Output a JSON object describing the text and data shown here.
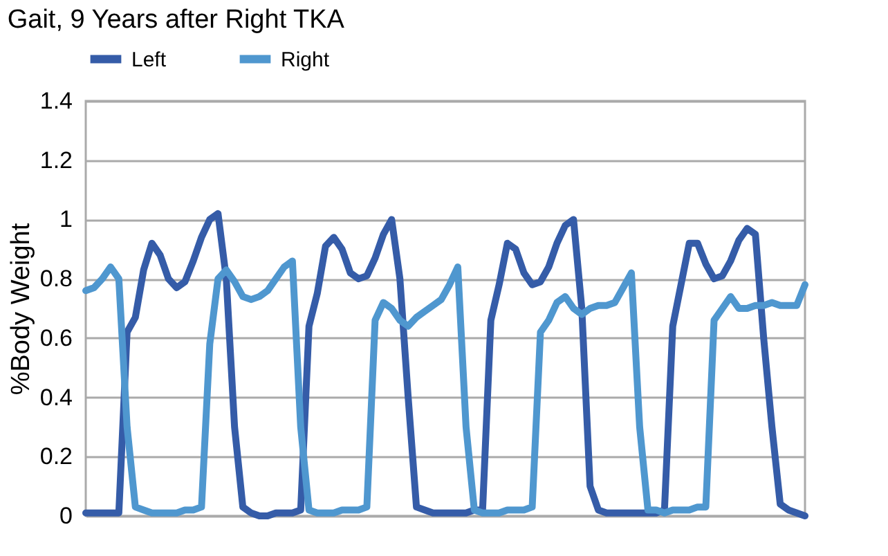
{
  "chart_data": {
    "type": "line",
    "title": "Gait, 9 Years after Right TKA",
    "ylabel": "%Body Weight",
    "ylim": [
      0,
      1.4
    ],
    "yticks": [
      0,
      0.2,
      0.4,
      0.6,
      0.8,
      1,
      1.2,
      1.4
    ],
    "grid": "y",
    "legend": "top",
    "line_style": "solid",
    "marker": "none",
    "categories": [
      null,
      null,
      null,
      null,
      null,
      null,
      null,
      null,
      null,
      null,
      null,
      null,
      null,
      null,
      null,
      null,
      null,
      null,
      null,
      null,
      null,
      null,
      null,
      null,
      null,
      null,
      null,
      null,
      null,
      null,
      null,
      null,
      null,
      null,
      null,
      null,
      null,
      null,
      null,
      null,
      null,
      null,
      null,
      null,
      null,
      null,
      null,
      null,
      null,
      null,
      null,
      null,
      null,
      null,
      null,
      null,
      null,
      null,
      null,
      null,
      null,
      null,
      null,
      null,
      null,
      null,
      null,
      null,
      null,
      null,
      null,
      null,
      null,
      null,
      null,
      null,
      null,
      null,
      null,
      null,
      null,
      null,
      null,
      null,
      null,
      null,
      null,
      null
    ],
    "series": [
      {
        "name": "Left",
        "color": "#355ca8",
        "values": [
          0.01,
          0.01,
          0.01,
          0.01,
          0.01,
          0.62,
          0.67,
          0.83,
          0.92,
          0.88,
          0.8,
          0.77,
          0.79,
          0.86,
          0.94,
          1.0,
          1.02,
          0.8,
          0.3,
          0.03,
          0.01,
          0.0,
          0.0,
          0.01,
          0.01,
          0.01,
          0.02,
          0.64,
          0.75,
          0.91,
          0.94,
          0.9,
          0.82,
          0.8,
          0.81,
          0.87,
          0.95,
          1.0,
          0.8,
          0.4,
          0.03,
          0.02,
          0.01,
          0.01,
          0.01,
          0.01,
          0.01,
          0.02,
          0.02,
          0.66,
          0.78,
          0.92,
          0.9,
          0.82,
          0.78,
          0.79,
          0.84,
          0.92,
          0.98,
          1.0,
          0.7,
          0.1,
          0.02,
          0.01,
          0.01,
          0.01,
          0.01,
          0.01,
          0.01,
          0.01,
          0.02,
          0.64,
          0.78,
          0.92,
          0.92,
          0.85,
          0.8,
          0.81,
          0.86,
          0.93,
          0.97,
          0.95,
          0.6,
          0.3,
          0.04,
          0.02,
          0.01,
          0.0
        ]
      },
      {
        "name": "Right",
        "color": "#4f97cf",
        "values": [
          0.76,
          0.77,
          0.8,
          0.84,
          0.8,
          0.3,
          0.03,
          0.02,
          0.01,
          0.01,
          0.01,
          0.01,
          0.02,
          0.02,
          0.03,
          0.58,
          0.8,
          0.83,
          0.79,
          0.74,
          0.73,
          0.74,
          0.76,
          0.8,
          0.84,
          0.86,
          0.3,
          0.02,
          0.01,
          0.01,
          0.01,
          0.02,
          0.02,
          0.02,
          0.03,
          0.66,
          0.72,
          0.7,
          0.66,
          0.64,
          0.67,
          0.69,
          0.71,
          0.73,
          0.78,
          0.84,
          0.3,
          0.02,
          0.01,
          0.01,
          0.01,
          0.02,
          0.02,
          0.02,
          0.03,
          0.62,
          0.66,
          0.72,
          0.74,
          0.7,
          0.68,
          0.7,
          0.71,
          0.71,
          0.72,
          0.77,
          0.82,
          0.3,
          0.02,
          0.02,
          0.01,
          0.02,
          0.02,
          0.02,
          0.03,
          0.03,
          0.66,
          0.7,
          0.74,
          0.7,
          0.7,
          0.71,
          0.71,
          0.72,
          0.71,
          0.71,
          0.71,
          0.78
        ]
      }
    ]
  }
}
